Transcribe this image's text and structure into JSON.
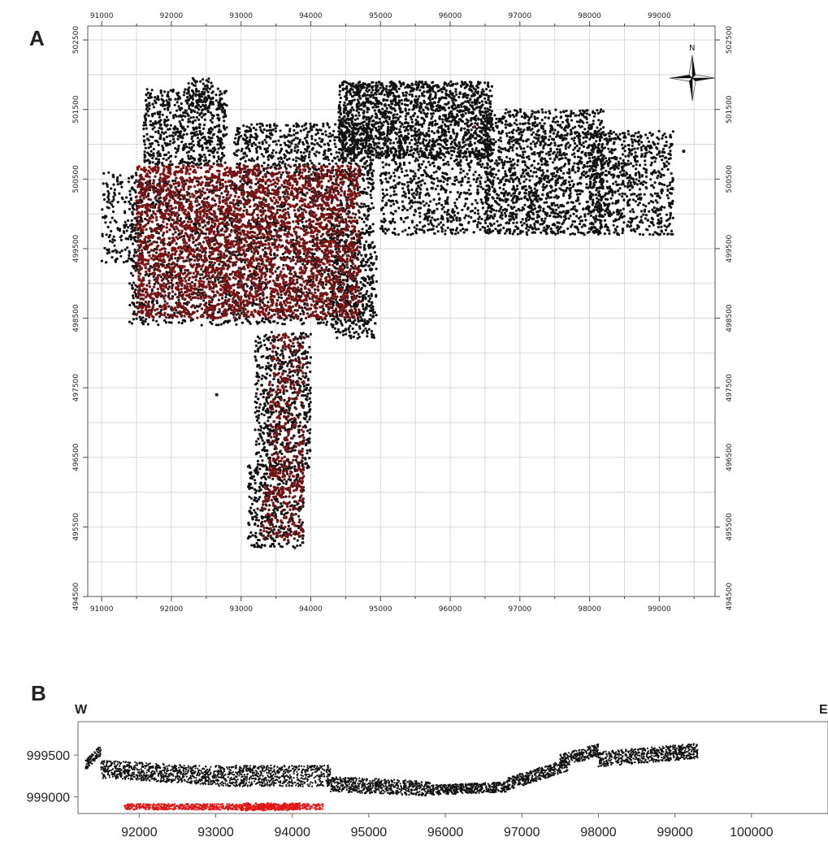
{
  "figure": {
    "panel_a_label": "A",
    "panel_b_label": "B",
    "north_label": "N",
    "west_label": "W",
    "east_label": "E"
  },
  "colors": {
    "black_points": "#111111",
    "dark_red_points": "#7a1414",
    "red_points": "#e01818",
    "grid": "#d9d9d9",
    "frame": "#555555"
  },
  "chart_data": [
    {
      "type": "scatter",
      "panel": "A",
      "title": "",
      "xlabel": "",
      "ylabel": "",
      "xlim": [
        90800,
        99800
      ],
      "ylim": [
        494500,
        502700
      ],
      "x_ticks": [
        "91000",
        "92000",
        "93000",
        "94000",
        "95000",
        "96000",
        "97000",
        "98000",
        "99000"
      ],
      "y_ticks": [
        "494500",
        "495500",
        "496500",
        "497500",
        "498500",
        "499500",
        "500500",
        "501500",
        "502500"
      ],
      "grid": true,
      "series": [
        {
          "color": "#111111",
          "regions": [
            {
              "x": [
                91600,
                92800
              ],
              "y": [
                500700,
                501800
              ],
              "density": 0.6
            },
            {
              "x": [
                92200,
                92600
              ],
              "y": [
                501500,
                501950
              ],
              "density": 0.5
            },
            {
              "x": [
                91000,
                91600
              ],
              "y": [
                499300,
                500600
              ],
              "density": 0.3
            },
            {
              "x": [
                92900,
                94900
              ],
              "y": [
                500500,
                501300
              ],
              "density": 0.5
            },
            {
              "x": [
                94400,
                96600
              ],
              "y": [
                500800,
                501900
              ],
              "density": 0.9
            },
            {
              "x": [
                96500,
                98200
              ],
              "y": [
                499700,
                501500
              ],
              "density": 0.6
            },
            {
              "x": [
                98000,
                99200
              ],
              "y": [
                499700,
                501200
              ],
              "density": 0.5
            },
            {
              "x": [
                95000,
                96600
              ],
              "y": [
                499700,
                500900
              ],
              "density": 0.4
            },
            {
              "x": [
                91400,
                94900
              ],
              "y": [
                498400,
                500500
              ],
              "density": 0.35
            },
            {
              "x": [
                94300,
                94950
              ],
              "y": [
                498200,
                499800
              ],
              "density": 0.4
            },
            {
              "x": [
                93200,
                94000
              ],
              "y": [
                496300,
                498300
              ],
              "density": 0.5
            },
            {
              "x": [
                93100,
                93900
              ],
              "y": [
                495200,
                496400
              ],
              "density": 0.5
            }
          ],
          "points": [
            [
              92650,
              497400
            ],
            [
              99350,
              500900
            ]
          ]
        },
        {
          "color": "#7a1414",
          "regions": [
            {
              "x": [
                91500,
                94700
              ],
              "y": [
                498500,
                500700
              ],
              "density": 0.55
            },
            {
              "x": [
                93400,
                93900
              ],
              "y": [
                496000,
                498300
              ],
              "density": 0.3
            },
            {
              "x": [
                93300,
                93900
              ],
              "y": [
                495300,
                496100
              ],
              "density": 0.35
            }
          ],
          "points": [
            [
              96350,
              501250
            ]
          ]
        }
      ]
    },
    {
      "type": "scatter",
      "panel": "B",
      "title": "",
      "xlabel": "",
      "ylabel": "",
      "xlim": [
        91200,
        101000
      ],
      "ylim": [
        998800,
        999900
      ],
      "x_ticks": [
        "92000",
        "93000",
        "94000",
        "95000",
        "96000",
        "97000",
        "98000",
        "99000",
        "100000"
      ],
      "y_ticks": [
        "999500",
        "999000"
      ],
      "grid": false,
      "series": [
        {
          "color": "#111111",
          "segments": [
            {
              "x": [
                91300,
                91500
              ],
              "y": [
                999380,
                999560
              ],
              "thickness": 120
            },
            {
              "x": [
                91500,
                93000
              ],
              "y": [
                999330,
                999250
              ],
              "thickness": 220
            },
            {
              "x": [
                93000,
                94500
              ],
              "y": [
                999250,
                999250
              ],
              "thickness": 250
            },
            {
              "x": [
                94500,
                95800
              ],
              "y": [
                999150,
                999100
              ],
              "thickness": 180
            },
            {
              "x": [
                95800,
                96800
              ],
              "y": [
                999080,
                999120
              ],
              "thickness": 120
            },
            {
              "x": [
                96800,
                97600
              ],
              "y": [
                999150,
                999380
              ],
              "thickness": 150
            },
            {
              "x": [
                97500,
                98000
              ],
              "y": [
                999430,
                999560
              ],
              "thickness": 150
            },
            {
              "x": [
                98000,
                99300
              ],
              "y": [
                999450,
                999550
              ],
              "thickness": 180
            }
          ]
        },
        {
          "color": "#e01818",
          "segments": [
            {
              "x": [
                91800,
                94400
              ],
              "y": [
                998880,
                998880
              ],
              "thickness": 70
            },
            {
              "x": [
                93300,
                94100
              ],
              "y": [
                998880,
                998880
              ],
              "thickness": 90
            }
          ]
        }
      ]
    }
  ]
}
